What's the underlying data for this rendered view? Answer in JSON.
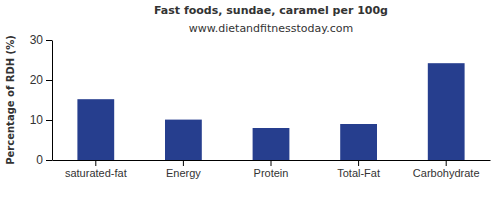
{
  "chart_data": {
    "type": "bar",
    "title": "Fast foods, sundae, caramel per 100g",
    "subtitle": "www.dietandfitnesstoday.com",
    "y_label": "Percentage of RDH (%)",
    "categories": [
      "saturated-fat",
      "Energy",
      "Protein",
      "Total-Fat",
      "Carbohydrate"
    ],
    "values": [
      15.2,
      10.1,
      8,
      9,
      24.2
    ],
    "color": "#263e8e",
    "ylim": [
      0,
      30
    ],
    "yticks": [
      0,
      10,
      20,
      30
    ],
    "grid": false
  }
}
